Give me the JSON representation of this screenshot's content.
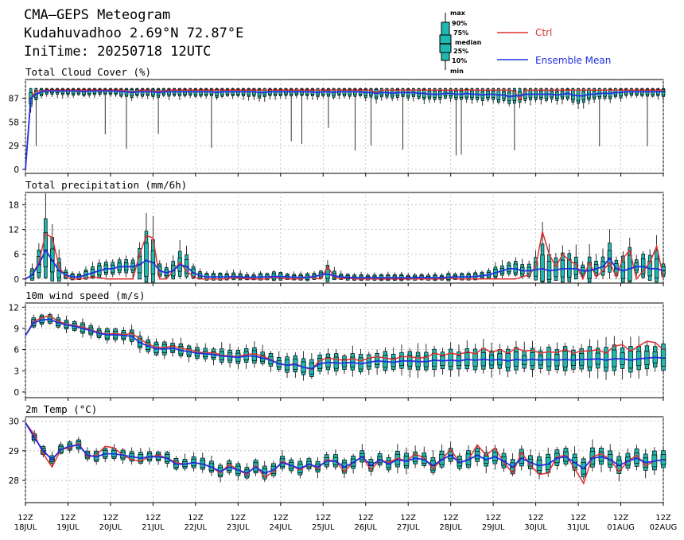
{
  "header": {
    "title": "CMA–GEPS Meteogram",
    "location": "Kudahuvadhoo 2.69°N 72.87°E",
    "init_time": "IniTime: 20250718 12UTC"
  },
  "legend": {
    "box_labels": [
      "max",
      "90%",
      "75%",
      "median",
      "25%",
      "10%",
      "min"
    ],
    "ctrl_label": "Ctrl",
    "mean_label": "Ensemble Mean",
    "ctrl_color": "#e03030",
    "mean_color": "#2030e0",
    "box_color": "#20b8b0"
  },
  "x_axis": {
    "days": [
      "18JUL",
      "19JUL",
      "20JUL",
      "21JUL",
      "22JUL",
      "23JUL",
      "24JUL",
      "25JUL",
      "26JUL",
      "27JUL",
      "28JUL",
      "29JUL",
      "30JUL",
      "31JUL",
      "01AUG",
      "02AUG"
    ],
    "hour_label": "12Z"
  },
  "chart_data": [
    {
      "type": "line",
      "title": "Total Cloud Cover (%)",
      "yticks": [
        0,
        29,
        58,
        87
      ],
      "ylim": [
        -5,
        110
      ],
      "x_step_hours": 6,
      "start": "2025-07-18 12Z",
      "ctrl": [
        0,
        87,
        96,
        96,
        97,
        97,
        97,
        97,
        97,
        97,
        97,
        97,
        97,
        97,
        97,
        97,
        97,
        97,
        97,
        96,
        95,
        96,
        97,
        97,
        96,
        96,
        96,
        97,
        97,
        97,
        97,
        97,
        97,
        97,
        97,
        97,
        97,
        97,
        97,
        97,
        97,
        97,
        97,
        97,
        97,
        97,
        97,
        97,
        97,
        97,
        97,
        97,
        97,
        97,
        97,
        97,
        97,
        97,
        97,
        97,
        97,
        97,
        97,
        97,
        97,
        97,
        94,
        97,
        97,
        97,
        97,
        97,
        97,
        97,
        97,
        97,
        97,
        97,
        97,
        97,
        97,
        97,
        97,
        97,
        97,
        97,
        97,
        97,
        97,
        97,
        97,
        97,
        96,
        85,
        97,
        97,
        97,
        97,
        97,
        97,
        97,
        97,
        97,
        97,
        97,
        97,
        97,
        97,
        97,
        97,
        97,
        97,
        97,
        97,
        97,
        97,
        97,
        97,
        97,
        97,
        97
      ],
      "mean": [
        0,
        87,
        92,
        95,
        96,
        96,
        96,
        96,
        96,
        96,
        96,
        95,
        96,
        96,
        96,
        96,
        96,
        96,
        95,
        95,
        94,
        95,
        95,
        95,
        95,
        94,
        95,
        95,
        95,
        95,
        95,
        95,
        95,
        95,
        95,
        95,
        94,
        95,
        95,
        95,
        95,
        95,
        95,
        95,
        94,
        94,
        95,
        95,
        95,
        95,
        95,
        95,
        95,
        95,
        95,
        94,
        95,
        95,
        94,
        95,
        95,
        95,
        95,
        95,
        94,
        94,
        93,
        94,
        94,
        93,
        94,
        94,
        94,
        94,
        93,
        93,
        92,
        92,
        92,
        93,
        93,
        92,
        92,
        93,
        92,
        92,
        91,
        92,
        92,
        91,
        91,
        89,
        90,
        90,
        92,
        92,
        92,
        92,
        92,
        92,
        91,
        92,
        93,
        91,
        90,
        90,
        92,
        92,
        93,
        93,
        93,
        94,
        94,
        95,
        95,
        95,
        95,
        95,
        95,
        95,
        95
      ]
    },
    {
      "type": "line",
      "title": "Total precipitation (mm/6h)",
      "yticks": [
        0,
        6,
        12,
        18
      ],
      "ylim": [
        -1,
        21
      ],
      "ctrl": [
        0,
        1,
        4,
        11,
        10,
        3,
        0.5,
        0,
        0,
        0.2,
        0.5,
        0.3,
        0,
        0,
        0,
        0,
        0,
        6,
        10.5,
        10,
        0,
        0,
        2,
        4,
        2,
        0.5,
        0,
        0,
        0,
        0,
        0,
        0.3,
        0.2,
        0,
        0,
        0,
        0,
        0.5,
        0.2,
        0,
        0,
        0,
        0.5,
        0.2,
        0,
        3,
        0.5,
        0,
        0.3,
        0,
        0,
        0,
        0,
        0,
        0,
        0,
        0,
        0,
        0,
        0,
        0,
        0,
        0,
        0.3,
        0,
        0,
        0,
        0,
        0,
        0,
        0,
        0,
        0,
        0,
        0.5,
        1,
        3,
        11.5,
        6,
        3,
        6,
        4.5,
        3.5,
        0,
        4,
        0.5,
        2,
        4,
        0.5,
        5,
        7,
        0,
        2,
        4,
        8,
        0.5
      ],
      "mean": [
        0,
        1,
        3.5,
        7,
        4.5,
        2,
        1,
        0.5,
        0.5,
        1,
        1.5,
        2,
        2.5,
        2.5,
        3,
        3,
        3,
        3.5,
        4.5,
        4,
        2,
        1.5,
        2,
        3.5,
        3,
        1.5,
        0.8,
        0.5,
        0.5,
        0.5,
        0.5,
        0.6,
        0.5,
        0.4,
        0.4,
        0.5,
        0.5,
        0.6,
        0.6,
        0.5,
        0.4,
        0.4,
        0.4,
        0.6,
        1,
        1.2,
        0.8,
        0.5,
        0.4,
        0.3,
        0.3,
        0.3,
        0.3,
        0.3,
        0.3,
        0.3,
        0.3,
        0.3,
        0.3,
        0.4,
        0.3,
        0.3,
        0.3,
        0.4,
        0.5,
        0.5,
        0.5,
        0.6,
        0.8,
        1,
        1.5,
        2,
        2.5,
        2.5,
        2,
        2,
        2.3,
        2.5,
        2,
        2.2,
        2.5,
        2.5,
        2.5,
        2,
        2,
        2.5,
        3,
        5,
        2.5,
        2,
        2.5,
        3,
        3,
        2.5,
        2.5,
        2
      ],
      "box_ranges": "visual"
    },
    {
      "type": "line",
      "title": "10m wind speed (m/s)",
      "yticks": [
        0,
        3,
        6,
        9,
        12
      ],
      "ylim": [
        -0.8,
        12.6
      ],
      "ctrl": [
        8,
        10,
        10.5,
        10.8,
        10,
        9.6,
        9.4,
        9.2,
        8.8,
        8.4,
        8.2,
        8.3,
        8.1,
        8.3,
        7.5,
        6.8,
        6.3,
        6.3,
        6.5,
        6.2,
        6,
        5.7,
        5.5,
        5.6,
        5.2,
        5.1,
        5,
        5.3,
        5.4,
        5.1,
        4.6,
        4,
        3.8,
        4,
        3.5,
        3.2,
        4.5,
        4.8,
        4.6,
        4.5,
        4.7,
        4.4,
        4.8,
        5,
        4.8,
        4.6,
        5,
        5,
        4.8,
        4.9,
        5.5,
        5.2,
        5.5,
        5.3,
        5.7,
        5.4,
        6.2,
        5.6,
        6,
        5.5,
        6.2,
        5.8,
        5.9,
        5.5,
        5.7,
        5.6,
        6,
        5.5,
        5.8,
        5.8,
        6,
        5.5,
        6.5,
        6.7,
        5.8,
        6.5,
        7.2,
        7,
        6
      ],
      "mean": [
        8,
        9.8,
        10.2,
        10.3,
        9.8,
        9.5,
        9.3,
        9,
        8.7,
        8.3,
        8.1,
        8.1,
        8,
        7.9,
        7,
        6.5,
        6.1,
        6.1,
        6.2,
        5.9,
        5.7,
        5.5,
        5.4,
        5.3,
        5.1,
        5,
        4.9,
        5.1,
        5.1,
        4.8,
        4.5,
        4,
        3.8,
        3.9,
        3.5,
        3.3,
        4,
        4.2,
        4.1,
        4.1,
        4.2,
        4,
        4.2,
        4.4,
        4.3,
        4.2,
        4.4,
        4.4,
        4.3,
        4.3,
        4.5,
        4.4,
        4.5,
        4.4,
        4.6,
        4.5,
        4.6,
        4.5,
        4.6,
        4.4,
        4.6,
        4.5,
        4.6,
        4.5,
        4.6,
        4.5,
        4.6,
        4.5,
        4.6,
        4.6,
        4.7,
        4.5,
        4.7,
        4.7,
        4.5,
        4.7,
        4.8,
        4.9,
        4.8
      ]
    },
    {
      "type": "line",
      "title": "2m Temp (°C)",
      "yticks": [
        28,
        29,
        30
      ],
      "ylim": [
        27.25,
        30.15
      ],
      "ctrl": [
        29.95,
        29.55,
        28.9,
        28.45,
        29.05,
        29.1,
        29.25,
        28.8,
        28.85,
        29.15,
        29.1,
        28.85,
        28.7,
        28.65,
        28.8,
        28.85,
        28.75,
        28.6,
        28.55,
        28.6,
        28.55,
        28.45,
        28.25,
        28.55,
        28.35,
        28.2,
        28.5,
        28.1,
        28.3,
        28.65,
        28.5,
        28.35,
        28.55,
        28.4,
        28.7,
        28.65,
        28.3,
        28.6,
        28.8,
        28.35,
        28.7,
        28.6,
        28.75,
        28.65,
        28.9,
        28.75,
        28.4,
        28.7,
        29.05,
        28.6,
        28.7,
        29.2,
        28.85,
        29.1,
        28.6,
        28.25,
        28.95,
        28.5,
        28.2,
        28.25,
        28.8,
        28.85,
        28.4,
        27.9,
        28.8,
        28.9,
        28.7,
        28.3,
        28.65,
        28.85,
        28.5,
        28.65,
        28.7
      ],
      "mean": [
        29.95,
        29.45,
        29,
        28.7,
        29.05,
        29.15,
        29.2,
        28.85,
        28.8,
        28.9,
        28.9,
        28.85,
        28.8,
        28.75,
        28.8,
        28.8,
        28.75,
        28.55,
        28.55,
        28.6,
        28.55,
        28.45,
        28.3,
        28.45,
        28.35,
        28.25,
        28.45,
        28.25,
        28.35,
        28.6,
        28.5,
        28.4,
        28.55,
        28.45,
        28.65,
        28.65,
        28.45,
        28.6,
        28.8,
        28.5,
        28.7,
        28.55,
        28.7,
        28.65,
        28.75,
        28.7,
        28.5,
        28.7,
        28.85,
        28.6,
        28.7,
        28.85,
        28.7,
        28.8,
        28.65,
        28.45,
        28.75,
        28.6,
        28.5,
        28.55,
        28.75,
        28.8,
        28.6,
        28.4,
        28.75,
        28.8,
        28.7,
        28.5,
        28.65,
        28.75,
        28.6,
        28.65,
        28.7
      ]
    }
  ]
}
